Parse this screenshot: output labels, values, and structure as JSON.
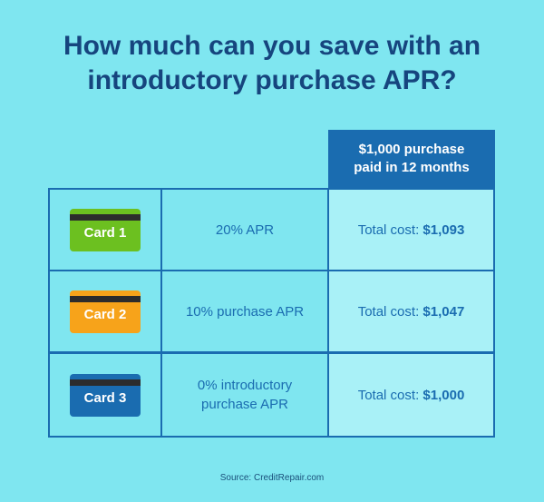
{
  "title_line1": "How much can you save with an",
  "title_line2": "introductory purchase APR?",
  "header_line1": "$1,000 purchase",
  "header_line2": "paid in 12 months",
  "rows": [
    {
      "card": "Card 1",
      "card_color": "#6cc020",
      "apr_line1": "20% APR",
      "apr_line2": "",
      "total_prefix": "Total cost: ",
      "total_value": "$1,093"
    },
    {
      "card": "Card 2",
      "card_color": "#f7a31a",
      "apr_line1": "10% purchase APR",
      "apr_line2": "",
      "total_prefix": "Total cost: ",
      "total_value": "$1,047"
    },
    {
      "card": "Card 3",
      "card_color": "#1a6cb0",
      "apr_line1": "0% introductory",
      "apr_line2": "purchase APR",
      "total_prefix": "Total cost: ",
      "total_value": "$1,000"
    }
  ],
  "source": "Source: CreditRepair.com",
  "colors": {
    "background": "#7fe6f0",
    "title": "#16457e",
    "accent": "#1a6cb0"
  }
}
